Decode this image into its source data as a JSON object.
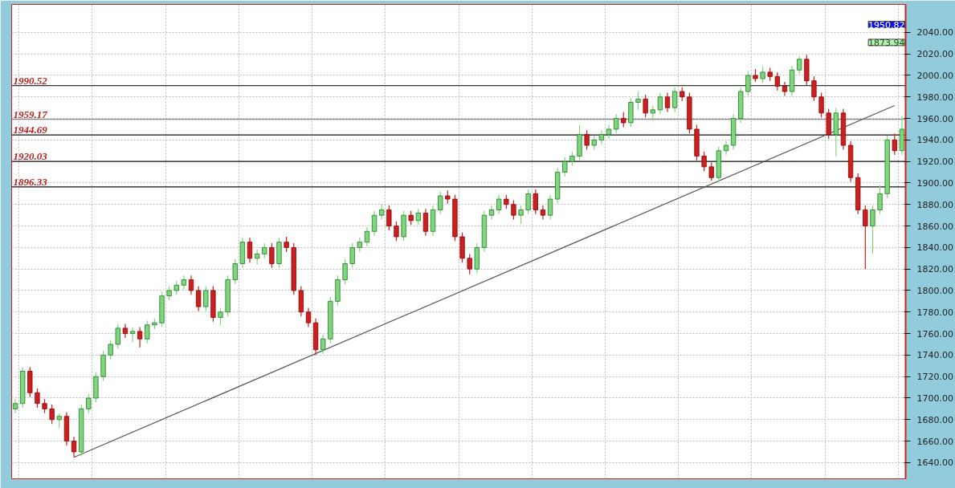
{
  "chart_data": {
    "type": "candlestick",
    "categories": [
      null,
      null,
      null,
      null,
      null,
      null,
      null,
      null,
      null,
      null,
      null,
      null,
      null,
      null,
      null,
      null,
      null,
      null,
      null,
      null,
      null,
      null,
      null,
      null,
      null,
      null,
      null,
      null,
      null,
      null,
      null,
      null,
      null,
      null,
      null,
      null,
      null,
      null,
      null,
      null,
      null,
      null,
      null,
      null,
      null,
      null,
      null,
      null,
      null,
      null,
      null,
      null,
      null,
      null,
      null,
      null,
      null,
      null,
      null,
      null,
      null,
      null,
      null,
      null,
      null,
      null,
      null,
      null,
      null,
      null,
      null,
      null,
      null,
      null,
      null,
      null,
      null,
      null,
      null,
      null,
      null,
      null,
      null,
      null,
      null,
      null,
      null,
      null,
      null,
      null,
      null,
      null,
      null,
      null,
      null,
      null,
      null,
      null,
      null,
      null,
      null,
      null,
      null,
      null,
      null,
      null,
      null,
      null,
      null,
      null,
      null,
      null,
      null,
      null,
      null,
      null,
      null,
      null,
      null,
      null,
      null,
      null
    ],
    "ohlc": [
      [
        1690,
        1699,
        1686,
        1695
      ],
      [
        1695,
        1729,
        1691,
        1725
      ],
      [
        1725,
        1729,
        1701,
        1705
      ],
      [
        1705,
        1709,
        1691,
        1695
      ],
      [
        1695,
        1699,
        1686,
        1690
      ],
      [
        1690,
        1694,
        1676,
        1680
      ],
      [
        1680,
        1686,
        1672,
        1683
      ],
      [
        1683,
        1687,
        1656,
        1660
      ],
      [
        1660,
        1664,
        1645,
        1650
      ],
      [
        1650,
        1694,
        1646,
        1690
      ],
      [
        1690,
        1704,
        1686,
        1700
      ],
      [
        1700,
        1724,
        1696,
        1720
      ],
      [
        1720,
        1744,
        1716,
        1740
      ],
      [
        1740,
        1754,
        1736,
        1750
      ],
      [
        1750,
        1769,
        1746,
        1765
      ],
      [
        1765,
        1769,
        1756,
        1760
      ],
      [
        1760,
        1766,
        1752,
        1762
      ],
      [
        1762,
        1766,
        1747,
        1755
      ],
      [
        1755,
        1772,
        1751,
        1768
      ],
      [
        1768,
        1774,
        1764,
        1770
      ],
      [
        1770,
        1799,
        1766,
        1795
      ],
      [
        1795,
        1804,
        1791,
        1800
      ],
      [
        1800,
        1809,
        1796,
        1805
      ],
      [
        1805,
        1814,
        1801,
        1810
      ],
      [
        1810,
        1814,
        1796,
        1800
      ],
      [
        1800,
        1804,
        1781,
        1785
      ],
      [
        1785,
        1804,
        1781,
        1800
      ],
      [
        1800,
        1804,
        1771,
        1775
      ],
      [
        1775,
        1784,
        1768,
        1780
      ],
      [
        1780,
        1814,
        1776,
        1810
      ],
      [
        1810,
        1829,
        1806,
        1825
      ],
      [
        1825,
        1849,
        1821,
        1845
      ],
      [
        1845,
        1849,
        1826,
        1830
      ],
      [
        1830,
        1838,
        1824,
        1834
      ],
      [
        1834,
        1844,
        1830,
        1840
      ],
      [
        1840,
        1844,
        1821,
        1825
      ],
      [
        1825,
        1849,
        1821,
        1845
      ],
      [
        1845,
        1850,
        1836,
        1840
      ],
      [
        1840,
        1844,
        1796,
        1800
      ],
      [
        1800,
        1804,
        1776,
        1780
      ],
      [
        1780,
        1784,
        1766,
        1770
      ],
      [
        1770,
        1774,
        1740,
        1745
      ],
      [
        1745,
        1759,
        1741,
        1755
      ],
      [
        1755,
        1794,
        1751,
        1790
      ],
      [
        1790,
        1814,
        1786,
        1810
      ],
      [
        1810,
        1829,
        1806,
        1825
      ],
      [
        1825,
        1844,
        1821,
        1840
      ],
      [
        1840,
        1849,
        1836,
        1845
      ],
      [
        1845,
        1859,
        1841,
        1855
      ],
      [
        1855,
        1874,
        1851,
        1870
      ],
      [
        1870,
        1880,
        1866,
        1875
      ],
      [
        1875,
        1879,
        1856,
        1860
      ],
      [
        1860,
        1864,
        1846,
        1850
      ],
      [
        1850,
        1874,
        1846,
        1870
      ],
      [
        1870,
        1874,
        1861,
        1865
      ],
      [
        1865,
        1876,
        1861,
        1872
      ],
      [
        1872,
        1876,
        1851,
        1855
      ],
      [
        1855,
        1879,
        1851,
        1875
      ],
      [
        1875,
        1892,
        1871,
        1888
      ],
      [
        1888,
        1893,
        1881,
        1885
      ],
      [
        1885,
        1889,
        1846,
        1850
      ],
      [
        1850,
        1854,
        1826,
        1830
      ],
      [
        1830,
        1834,
        1815,
        1820
      ],
      [
        1820,
        1844,
        1816,
        1840
      ],
      [
        1840,
        1874,
        1836,
        1870
      ],
      [
        1870,
        1879,
        1866,
        1875
      ],
      [
        1875,
        1889,
        1871,
        1885
      ],
      [
        1885,
        1889,
        1876,
        1880
      ],
      [
        1880,
        1884,
        1866,
        1870
      ],
      [
        1870,
        1879,
        1862,
        1875
      ],
      [
        1875,
        1894,
        1871,
        1890
      ],
      [
        1890,
        1894,
        1871,
        1875
      ],
      [
        1875,
        1879,
        1866,
        1870
      ],
      [
        1870,
        1889,
        1866,
        1885
      ],
      [
        1885,
        1914,
        1881,
        1910
      ],
      [
        1910,
        1924,
        1906,
        1920
      ],
      [
        1920,
        1929,
        1916,
        1925
      ],
      [
        1925,
        1954,
        1921,
        1945
      ],
      [
        1945,
        1949,
        1931,
        1935
      ],
      [
        1935,
        1944,
        1931,
        1940
      ],
      [
        1940,
        1949,
        1936,
        1945
      ],
      [
        1945,
        1954,
        1941,
        1950
      ],
      [
        1950,
        1964,
        1946,
        1960
      ],
      [
        1960,
        1966,
        1952,
        1956
      ],
      [
        1956,
        1979,
        1952,
        1975
      ],
      [
        1975,
        1985,
        1968,
        1978
      ],
      [
        1978,
        1982,
        1961,
        1965
      ],
      [
        1965,
        1972,
        1958,
        1968
      ],
      [
        1968,
        1984,
        1964,
        1980
      ],
      [
        1980,
        1984,
        1966,
        1970
      ],
      [
        1970,
        1989,
        1966,
        1985
      ],
      [
        1985,
        1989,
        1976,
        1980
      ],
      [
        1980,
        1984,
        1946,
        1950
      ],
      [
        1950,
        1954,
        1921,
        1925
      ],
      [
        1925,
        1929,
        1911,
        1915
      ],
      [
        1915,
        1919,
        1902,
        1905
      ],
      [
        1905,
        1934,
        1901,
        1930
      ],
      [
        1930,
        1939,
        1926,
        1935
      ],
      [
        1935,
        1964,
        1931,
        1960
      ],
      [
        1960,
        1989,
        1956,
        1985
      ],
      [
        1985,
        2004,
        1981,
        2000
      ],
      [
        2000,
        2006,
        1994,
        1997
      ],
      [
        1997,
        2008,
        1993,
        2003
      ],
      [
        2003,
        2007,
        1995,
        1999
      ],
      [
        1999,
        2003,
        1986,
        1990
      ],
      [
        1990,
        1994,
        1981,
        1985
      ],
      [
        1985,
        2009,
        1981,
        2005
      ],
      [
        2005,
        2018,
        2001,
        2015
      ],
      [
        2015,
        2019,
        1991,
        1995
      ],
      [
        1995,
        1999,
        1976,
        1980
      ],
      [
        1980,
        1984,
        1961,
        1965
      ],
      [
        1965,
        1969,
        1941,
        1945
      ],
      [
        1945,
        1970,
        1925,
        1965
      ],
      [
        1965,
        1969,
        1931,
        1935
      ],
      [
        1935,
        1939,
        1901,
        1905
      ],
      [
        1905,
        1909,
        1871,
        1875
      ],
      [
        1875,
        1879,
        1820,
        1860
      ],
      [
        1860,
        1879,
        1834,
        1875
      ],
      [
        1875,
        1898,
        1871,
        1890
      ],
      [
        1890,
        1944,
        1886,
        1940
      ],
      [
        1940,
        1946,
        1926,
        1930
      ],
      [
        1930,
        1962,
        1926,
        1950
      ]
    ],
    "colors": [
      "#7fd67f",
      "#7fd67f",
      "#cc1f1f",
      "#cc1f1f",
      "#cc1f1f",
      "#cc1f1f",
      "#7fd67f",
      "#cc1f1f",
      "#cc1f1f",
      "#7fd67f",
      "#7fd67f",
      "#7fd67f",
      "#7fd67f",
      "#7fd67f",
      "#7fd67f",
      "#cc1f1f",
      "#7fd67f",
      "#cc1f1f",
      "#7fd67f",
      "#7fd67f",
      "#7fd67f",
      "#7fd67f",
      "#7fd67f",
      "#7fd67f",
      "#cc1f1f",
      "#cc1f1f",
      "#7fd67f",
      "#cc1f1f",
      "#7fd67f",
      "#7fd67f",
      "#7fd67f",
      "#7fd67f",
      "#cc1f1f",
      "#7fd67f",
      "#7fd67f",
      "#cc1f1f",
      "#7fd67f",
      "#cc1f1f",
      "#cc1f1f",
      "#cc1f1f",
      "#cc1f1f",
      "#cc1f1f",
      "#7fd67f",
      "#7fd67f",
      "#7fd67f",
      "#7fd67f",
      "#7fd67f",
      "#7fd67f",
      "#7fd67f",
      "#7fd67f",
      "#7fd67f",
      "#cc1f1f",
      "#cc1f1f",
      "#7fd67f",
      "#cc1f1f",
      "#7fd67f",
      "#cc1f1f",
      "#7fd67f",
      "#7fd67f",
      "#cc1f1f",
      "#cc1f1f",
      "#cc1f1f",
      "#cc1f1f",
      "#7fd67f",
      "#7fd67f",
      "#7fd67f",
      "#7fd67f",
      "#cc1f1f",
      "#cc1f1f",
      "#7fd67f",
      "#7fd67f",
      "#cc1f1f",
      "#cc1f1f",
      "#7fd67f",
      "#7fd67f",
      "#7fd67f",
      "#7fd67f",
      "#7fd67f",
      "#cc1f1f",
      "#7fd67f",
      "#7fd67f",
      "#7fd67f",
      "#7fd67f",
      "#cc1f1f",
      "#7fd67f",
      "#7fd67f",
      "#cc1f1f",
      "#7fd67f",
      "#7fd67f",
      "#cc1f1f",
      "#7fd67f",
      "#cc1f1f",
      "#cc1f1f",
      "#cc1f1f",
      "#cc1f1f",
      "#cc1f1f",
      "#7fd67f",
      "#7fd67f",
      "#7fd67f",
      "#7fd67f",
      "#7fd67f",
      "#cc1f1f",
      "#7fd67f",
      "#cc1f1f",
      "#cc1f1f",
      "#cc1f1f",
      "#7fd67f",
      "#7fd67f",
      "#cc1f1f",
      "#cc1f1f",
      "#cc1f1f",
      "#cc1f1f",
      "#7fd67f",
      "#cc1f1f",
      "#cc1f1f",
      "#cc1f1f",
      "#cc1f1f",
      "#7fd67f",
      "#7fd67f",
      "#7fd67f",
      "#cc1f1f",
      "#7fd67f"
    ],
    "series": [
      {
        "type": "line",
        "color": "#555555",
        "values": [
          null,
          null,
          null,
          null,
          null,
          null,
          null,
          null,
          1645,
          null,
          null,
          null,
          null,
          null,
          null,
          null,
          null,
          null,
          null,
          null,
          null,
          null,
          null,
          null,
          null,
          null,
          null,
          null,
          null,
          null,
          null,
          null,
          null,
          null,
          null,
          null,
          null,
          null,
          null,
          null,
          null,
          null,
          null,
          null,
          null,
          null,
          null,
          null,
          null,
          null,
          null,
          null,
          null,
          null,
          null,
          null,
          null,
          null,
          null,
          null,
          null,
          null,
          null,
          null,
          null,
          null,
          null,
          null,
          null,
          null,
          null,
          null,
          null,
          null,
          null,
          null,
          null,
          null,
          null,
          null,
          null,
          null,
          null,
          null,
          null,
          null,
          null,
          null,
          null,
          null,
          null,
          null,
          null,
          null,
          null,
          null,
          null,
          null,
          null,
          null,
          null,
          null,
          null,
          null,
          null,
          null,
          null,
          null,
          null,
          null,
          null,
          null,
          null,
          null,
          null,
          null,
          null,
          null,
          null,
          null,
          1972,
          null
        ]
      }
    ],
    "ylim": [
      1625,
      2066
    ],
    "yticks": [
      {
        "value": 1640,
        "label": "1640.00"
      },
      {
        "value": 1660,
        "label": "1660.00"
      },
      {
        "value": 1680,
        "label": "1680.00"
      },
      {
        "value": 1700,
        "label": "1700.00"
      },
      {
        "value": 1720,
        "label": "1720.00"
      },
      {
        "value": 1740,
        "label": "1740.00"
      },
      {
        "value": 1760,
        "label": "1760.00"
      },
      {
        "value": 1780,
        "label": "1780.00"
      },
      {
        "value": 1800,
        "label": "1800.00"
      },
      {
        "value": 1820,
        "label": "1820.00"
      },
      {
        "value": 1840,
        "label": "1840.00"
      },
      {
        "value": 1860,
        "label": "1860.00"
      },
      {
        "value": 1880,
        "label": "1880.00"
      },
      {
        "value": 1900,
        "label": "1900.00"
      },
      {
        "value": 1920,
        "label": "1920.00"
      },
      {
        "value": 1940,
        "label": "1940.00"
      },
      {
        "value": 1960,
        "label": "1960.00"
      },
      {
        "value": 1980,
        "label": "1980.00"
      },
      {
        "value": 2000,
        "label": "2000.00"
      },
      {
        "value": 2020,
        "label": "2020.00"
      },
      {
        "value": 2040,
        "label": "2040.00"
      }
    ],
    "ref_lines": [
      {
        "axis": "y",
        "value": 1990.52,
        "label": "1990.52",
        "color": "#333333"
      },
      {
        "axis": "y",
        "value": 1959.17,
        "label": "1959.17",
        "color": "#888888"
      },
      {
        "axis": "y",
        "value": 1944.69,
        "label": "1944.69",
        "color": "#111111"
      },
      {
        "axis": "y",
        "value": 1920.03,
        "label": "1920.03",
        "color": "#111111"
      },
      {
        "axis": "y",
        "value": 1896.33,
        "label": "1896.33",
        "color": "#111111"
      }
    ],
    "annotations": [
      "1950.82",
      "1873.94"
    ],
    "grid": true,
    "tick_labels": "y"
  }
}
